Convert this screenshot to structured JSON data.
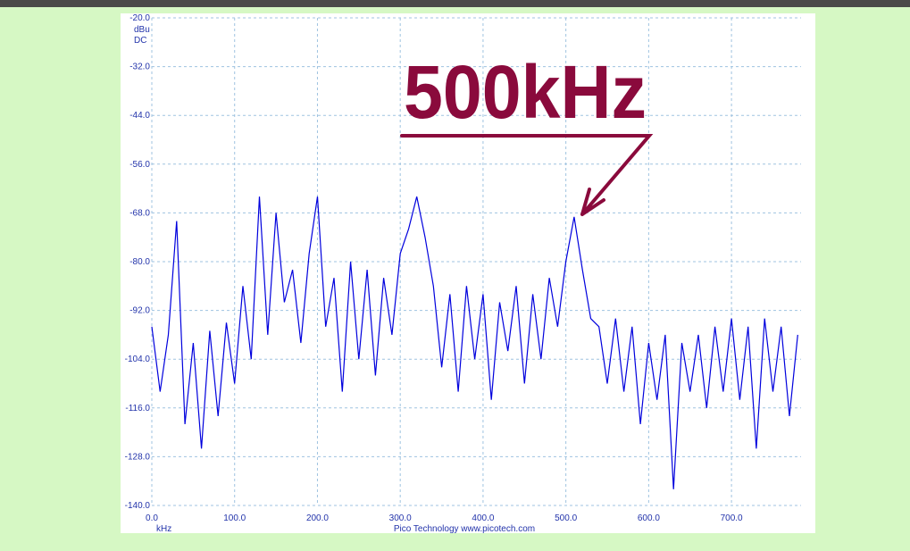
{
  "chart_data": {
    "type": "line",
    "annotation": "500kHz",
    "y_unit": "dBu",
    "y_coupling": "DC",
    "x_unit": "kHz",
    "footer": "Pico Technology  www.picotech.com",
    "x": [
      0,
      10,
      20,
      30,
      40,
      50,
      60,
      70,
      80,
      90,
      100,
      110,
      120,
      130,
      140,
      150,
      160,
      170,
      180,
      190,
      200,
      210,
      220,
      230,
      240,
      250,
      260,
      270,
      280,
      290,
      300,
      310,
      320,
      330,
      340,
      350,
      360,
      370,
      380,
      390,
      400,
      410,
      420,
      430,
      440,
      450,
      460,
      470,
      480,
      490,
      500,
      510,
      520,
      530,
      540,
      550,
      560,
      570,
      580,
      590,
      600,
      610,
      620,
      630,
      640,
      650,
      660,
      670,
      680,
      690,
      700,
      710,
      720,
      730,
      740,
      750,
      760,
      770,
      780
    ],
    "series": [
      {
        "color": "#0000dd",
        "values": [
          -96,
          -112,
          -98,
          -70,
          -120,
          -100,
          -126,
          -97,
          -118,
          -95,
          -110,
          -86,
          -104,
          -64,
          -98,
          -68,
          -90,
          -82,
          -100,
          -78,
          -64,
          -96,
          -84,
          -112,
          -80,
          -104,
          -82,
          -108,
          -84,
          -98,
          -78,
          -72,
          -64,
          -74,
          -86,
          -106,
          -88,
          -112,
          -86,
          -104,
          -88,
          -114,
          -90,
          -102,
          -86,
          -110,
          -88,
          -104,
          -84,
          -96,
          -80,
          -69,
          -82,
          -94,
          -96,
          -110,
          -94,
          -112,
          -96,
          -120,
          -100,
          -114,
          -98,
          -136,
          -100,
          -112,
          -98,
          -116,
          -96,
          -112,
          -94,
          -114,
          -96,
          -126,
          -94,
          -112,
          -96,
          -118,
          -98
        ]
      }
    ],
    "xlim": [
      0,
      784
    ],
    "ylim": [
      -140,
      -20
    ],
    "xticks": [
      {
        "value": 0,
        "label": "0.0"
      },
      {
        "value": 100,
        "label": "100.0"
      },
      {
        "value": 200,
        "label": "200.0"
      },
      {
        "value": 300,
        "label": "300.0"
      },
      {
        "value": 400,
        "label": "400.0"
      },
      {
        "value": 500,
        "label": "500.0"
      },
      {
        "value": 600,
        "label": "600.0"
      },
      {
        "value": 700,
        "label": "700.0"
      }
    ],
    "yticks": [
      {
        "value": -20,
        "label": "-20.0"
      },
      {
        "value": -32,
        "label": "-32.0"
      },
      {
        "value": -44,
        "label": "-44.0"
      },
      {
        "value": -56,
        "label": "-56.0"
      },
      {
        "value": -68,
        "label": "-68.0"
      },
      {
        "value": -80,
        "label": "-80.0"
      },
      {
        "value": -92,
        "label": "-92.0"
      },
      {
        "value": -104,
        "label": "-104.0"
      },
      {
        "value": -116,
        "label": "-116.0"
      },
      {
        "value": -128,
        "label": "-128.0"
      },
      {
        "value": -140,
        "label": "-140.0"
      }
    ],
    "grid": true
  }
}
